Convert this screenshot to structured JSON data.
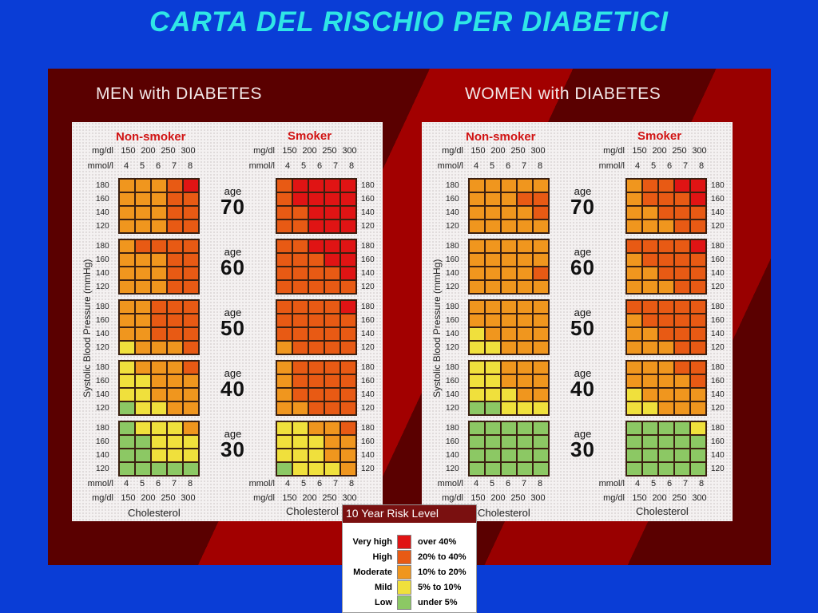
{
  "title": "CARTA DEL RISCHIO PER DIABETICI",
  "colors": {
    "very_high": "#e01414",
    "high": "#e85a14",
    "moderate": "#f0961e",
    "mild": "#f0e03c",
    "low": "#8cc864"
  },
  "panels": [
    {
      "id": "men",
      "heading": "MEN with DIABETES",
      "groups": [
        {
          "label": "Non-smoker",
          "grids": [
            [
              "MMMHV",
              "MMMHH",
              "MMMHH",
              "MMMHH"
            ],
            [
              "MHHHH",
              "MMMHH",
              "MMMHH",
              "MMMHH"
            ],
            [
              "MMHHH",
              "MMHHH",
              "MMHHH",
              "YMMMH"
            ],
            [
              "YMMMH",
              "YYMMM",
              "YYMMM",
              "GYYMM"
            ],
            [
              "GYYYM",
              "GGYYY",
              "GGYYY",
              "GGGGG"
            ]
          ]
        },
        {
          "label": "Smoker",
          "grids": [
            [
              "HVVVV",
              "HVVVV",
              "HHVVV",
              "HHVVV"
            ],
            [
              "HHVVV",
              "HHHVV",
              "HHHHV",
              "HHHHH"
            ],
            [
              "HHHHV",
              "HHHHH",
              "HHHHH",
              "MHHHH"
            ],
            [
              "MHHHH",
              "MHHHH",
              "MHHHH",
              "MMHHH"
            ],
            [
              "YYMMH",
              "YYYMM",
              "YYYMM",
              "GYYYM"
            ]
          ]
        }
      ],
      "ages": [
        "70",
        "60",
        "50",
        "40",
        "30"
      ]
    },
    {
      "id": "women",
      "heading": "WOMEN with DIABETES",
      "groups": [
        {
          "label": "Non-smoker",
          "grids": [
            [
              "MMMMM",
              "MMMHH",
              "MMMMH",
              "MMMMM"
            ],
            [
              "MMMMM",
              "MMMMM",
              "MMMMH",
              "MMMMM"
            ],
            [
              "MMMMM",
              "MMMMM",
              "YMMMM",
              "YYMMM"
            ],
            [
              "YYMMM",
              "YYMMM",
              "YYYMM",
              "GGYYY"
            ],
            [
              "GGGGG",
              "GGGGG",
              "GGGGG",
              "GGGGG"
            ]
          ]
        },
        {
          "label": "Smoker",
          "grids": [
            [
              "MHHVV",
              "MHHHV",
              "MMHHH",
              "MMMHH"
            ],
            [
              "HHHHV",
              "MHHHH",
              "MMHHH",
              "MMMHH"
            ],
            [
              "HHHHH",
              "MHHHH",
              "MMHHH",
              "MMMHH"
            ],
            [
              "MMMHH",
              "MMMMH",
              "YMMMM",
              "YYMMM"
            ],
            [
              "GGGGY",
              "GGGGG",
              "GGGGG",
              "GGGGG"
            ]
          ]
        }
      ],
      "ages": [
        "70",
        "60",
        "50",
        "40",
        "30"
      ]
    }
  ],
  "age_label": "age",
  "mgdl_unit": "mg/dl",
  "mmol_unit": "mmol/l",
  "mgdl_ticks": [
    "150",
    "200",
    "250",
    "300"
  ],
  "mmol_ticks": [
    "4",
    "5",
    "6",
    "7",
    "8"
  ],
  "bp_ticks": [
    "180",
    "160",
    "140",
    "120"
  ],
  "sbp_axis": "Systolic Blood Pressure (mmHg)",
  "cholesterol_label": "Cholesterol",
  "legend": {
    "title": "10 Year Risk Level",
    "rows": [
      {
        "level": "Very high",
        "range": "over 40%",
        "code": "V"
      },
      {
        "level": "High",
        "range": "20% to 40%",
        "code": "H"
      },
      {
        "level": "Moderate",
        "range": "10% to 20%",
        "code": "M"
      },
      {
        "level": "Mild",
        "range": "5% to 10%",
        "code": "Y"
      },
      {
        "level": "Low",
        "range": "under 5%",
        "code": "G"
      }
    ]
  }
}
